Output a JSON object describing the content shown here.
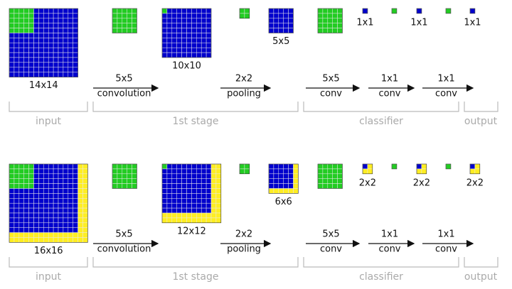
{
  "rows": [
    {
      "sizes": {
        "input": "14x14",
        "conv": "10x10",
        "pool": "5x5",
        "outputs": [
          "1x1",
          "1x1",
          "1x1"
        ]
      },
      "operations": [
        {
          "size": "5x5",
          "name": "convolution"
        },
        {
          "size": "2x2",
          "name": "pooling"
        },
        {
          "size": "5x5",
          "name": "conv"
        },
        {
          "size": "1x1",
          "name": "conv"
        },
        {
          "size": "1x1",
          "name": "conv"
        }
      ],
      "stages": [
        "input",
        "1st stage",
        "classifier",
        "output"
      ]
    },
    {
      "sizes": {
        "input": "16x16",
        "conv": "12x12",
        "pool": "6x6",
        "outputs": [
          "2x2",
          "2x2",
          "2x2"
        ]
      },
      "operations": [
        {
          "size": "5x5",
          "name": "convolution"
        },
        {
          "size": "2x2",
          "name": "pooling"
        },
        {
          "size": "5x5",
          "name": "conv"
        },
        {
          "size": "1x1",
          "name": "conv"
        },
        {
          "size": "1x1",
          "name": "conv"
        }
      ],
      "stages": [
        "input",
        "1st stage",
        "classifier",
        "output"
      ]
    }
  ]
}
